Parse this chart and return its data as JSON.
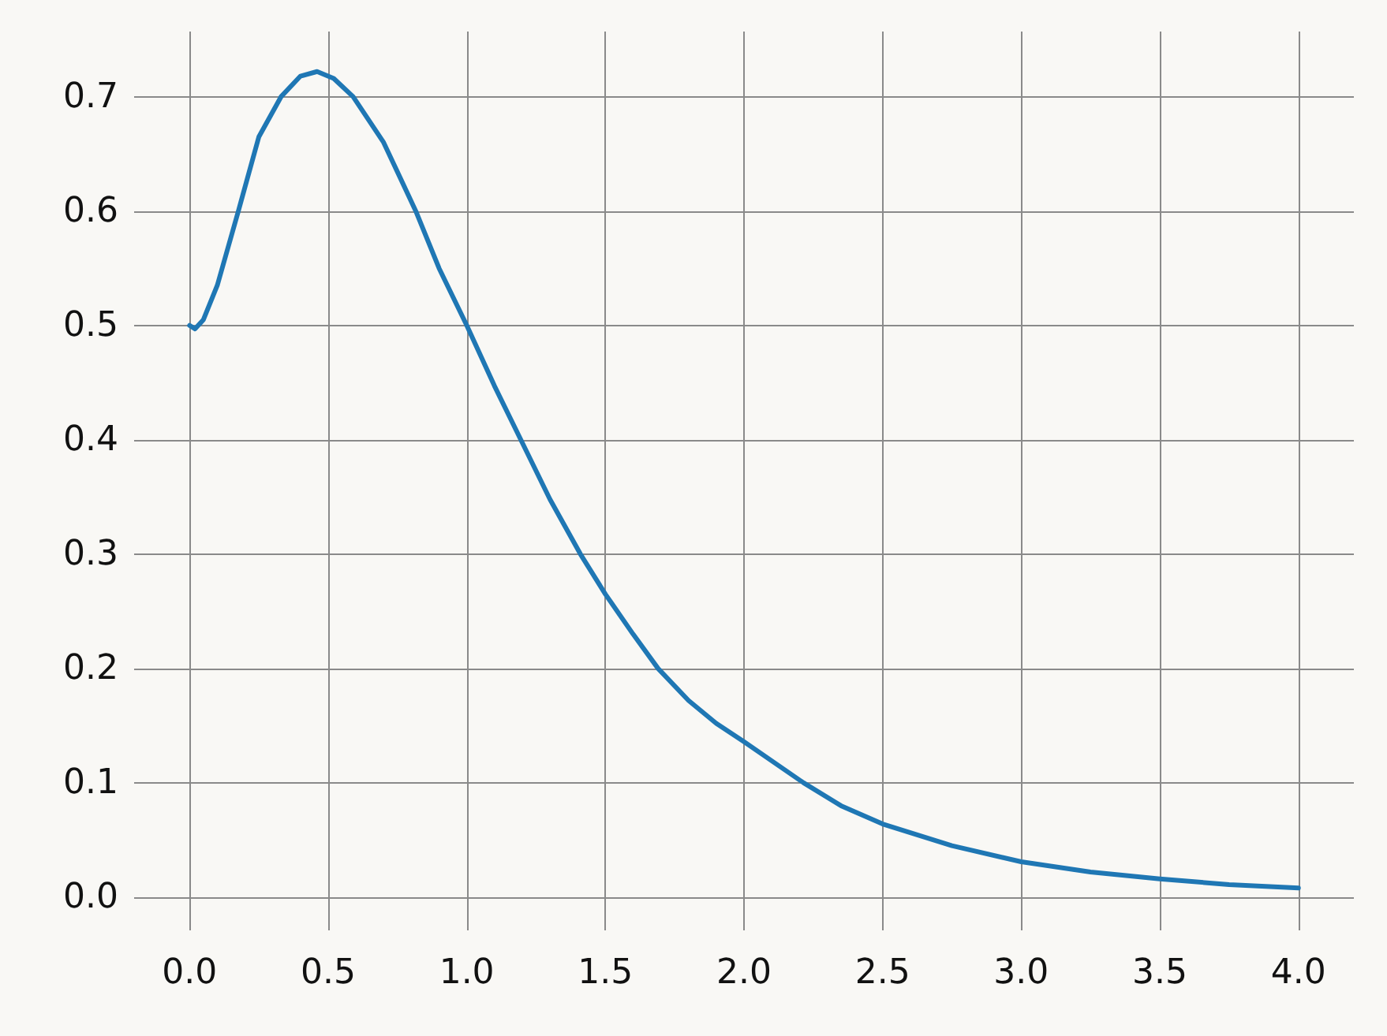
{
  "chart_data": {
    "type": "line",
    "x": [
      0,
      0.02,
      0.05,
      0.1,
      0.176,
      0.25,
      0.33,
      0.4,
      0.46,
      0.52,
      0.59,
      0.7,
      0.816,
      0.9,
      1.0,
      1.1,
      1.195,
      1.3,
      1.41,
      1.5,
      1.6,
      1.69,
      1.8,
      1.9,
      2.0,
      2.215,
      2.35,
      2.5,
      2.75,
      3.0,
      3.25,
      3.5,
      3.75,
      4.0
    ],
    "series": [
      {
        "color": "#1f77b4",
        "values": [
          0.5,
          0.497,
          0.505,
          0.535,
          0.6,
          0.665,
          0.7,
          0.718,
          0.722,
          0.716,
          0.7,
          0.66,
          0.6,
          0.55,
          0.5,
          0.447,
          0.4,
          0.348,
          0.3,
          0.265,
          0.23,
          0.2,
          0.172,
          0.152,
          0.136,
          0.1,
          0.08,
          0.064,
          0.045,
          0.031,
          0.022,
          0.016,
          0.011,
          0.008
        ]
      }
    ],
    "xlim": [
      -0.2,
      4.2
    ],
    "ylim": [
      -0.029,
      0.757
    ],
    "xticks": [
      {
        "value": 0,
        "label": "0.0"
      },
      {
        "value": 0.5,
        "label": "0.5"
      },
      {
        "value": 1,
        "label": "1.0"
      },
      {
        "value": 1.5,
        "label": "1.5"
      },
      {
        "value": 2,
        "label": "2.0"
      },
      {
        "value": 2.5,
        "label": "2.5"
      },
      {
        "value": 3,
        "label": "3.0"
      },
      {
        "value": 3.5,
        "label": "3.5"
      },
      {
        "value": 4,
        "label": "4.0"
      }
    ],
    "yticks": [
      {
        "value": 0,
        "label": "0.0"
      },
      {
        "value": 0.1,
        "label": "0.1"
      },
      {
        "value": 0.2,
        "label": "0.2"
      },
      {
        "value": 0.3,
        "label": "0.3"
      },
      {
        "value": 0.4,
        "label": "0.4"
      },
      {
        "value": 0.5,
        "label": "0.5"
      },
      {
        "value": 0.6,
        "label": "0.6"
      },
      {
        "value": 0.7,
        "label": "0.7"
      }
    ],
    "grid": true,
    "marker": "none",
    "line_style": "solid"
  }
}
